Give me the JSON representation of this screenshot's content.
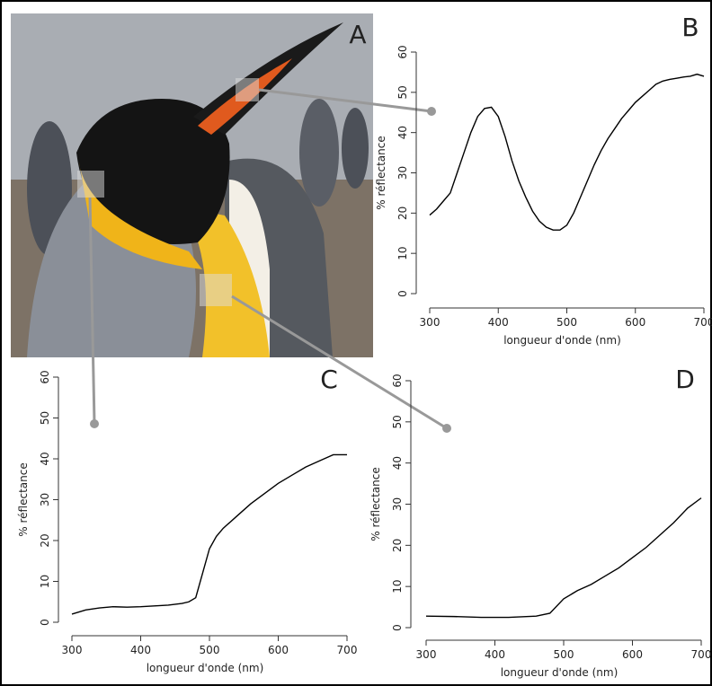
{
  "photo": {
    "label": "A"
  },
  "chart_data": [
    {
      "type": "line",
      "label": "B",
      "x_label": "longueur d'onde (nm)",
      "y_label": "% réflectance",
      "x": [
        300,
        310,
        320,
        330,
        340,
        350,
        360,
        370,
        380,
        390,
        400,
        410,
        420,
        430,
        440,
        450,
        460,
        470,
        480,
        490,
        500,
        510,
        520,
        530,
        540,
        550,
        560,
        570,
        580,
        590,
        600,
        610,
        620,
        630,
        640,
        650,
        660,
        670,
        680,
        690,
        700
      ],
      "series": [
        {
          "name": "B",
          "color": "#000000",
          "values": [
            19.5,
            21,
            23,
            25,
            30,
            35,
            40,
            44,
            46,
            46.3,
            44,
            39,
            33,
            28,
            24,
            20.5,
            18,
            16.5,
            15.8,
            15.8,
            17,
            20,
            24,
            28,
            32,
            35.5,
            38.5,
            41,
            43.5,
            45.5,
            47.5,
            49,
            50.5,
            52,
            52.8,
            53.2,
            53.5,
            53.8,
            54,
            54.5,
            54
          ]
        }
      ],
      "xlim": [
        300,
        700
      ],
      "ylim": [
        0,
        60
      ],
      "xticks": [
        300,
        400,
        500,
        600,
        700
      ],
      "yticks": [
        0,
        10,
        20,
        30,
        40,
        50,
        60
      ]
    },
    {
      "type": "line",
      "label": "C",
      "x_label": "longueur d'onde (nm)",
      "y_label": "% réflectance",
      "x": [
        300,
        320,
        340,
        360,
        380,
        400,
        420,
        440,
        460,
        470,
        480,
        490,
        500,
        510,
        520,
        540,
        560,
        580,
        600,
        620,
        640,
        660,
        680,
        700
      ],
      "series": [
        {
          "name": "C",
          "color": "#000000",
          "values": [
            2,
            3,
            3.5,
            3.8,
            3.7,
            3.8,
            4,
            4.2,
            4.6,
            5,
            6,
            12,
            18,
            21,
            23,
            26,
            29,
            31.5,
            34,
            36,
            38,
            39.5,
            41,
            41
          ]
        }
      ],
      "xlim": [
        300,
        700
      ],
      "ylim": [
        0,
        60
      ],
      "xticks": [
        300,
        400,
        500,
        600,
        700
      ],
      "yticks": [
        0,
        10,
        20,
        30,
        40,
        50,
        60
      ]
    },
    {
      "type": "line",
      "label": "D",
      "x_label": "longueur d'onde (nm)",
      "y_label": "% réflectance",
      "x": [
        300,
        340,
        380,
        420,
        460,
        480,
        500,
        520,
        540,
        560,
        580,
        600,
        620,
        640,
        660,
        680,
        700
      ],
      "series": [
        {
          "name": "D",
          "color": "#000000",
          "values": [
            2.8,
            2.7,
            2.5,
            2.5,
            2.8,
            3.5,
            7,
            9,
            10.5,
            12.5,
            14.5,
            17,
            19.5,
            22.5,
            25.5,
            29,
            31.5
          ]
        }
      ],
      "xlim": [
        300,
        700
      ],
      "ylim": [
        0,
        60
      ],
      "xticks": [
        300,
        400,
        500,
        600,
        700
      ],
      "yticks": [
        0,
        10,
        20,
        30,
        40,
        50,
        60
      ]
    }
  ]
}
